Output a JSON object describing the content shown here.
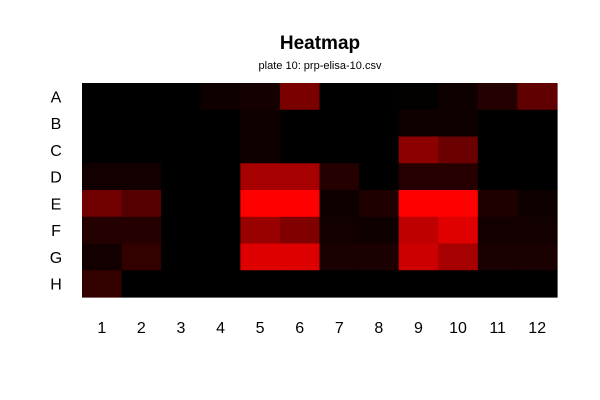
{
  "chart_data": {
    "type": "heatmap",
    "title": "Heatmap",
    "subtitle": "plate 10: prp-elisa-10.csv",
    "rows": [
      "A",
      "B",
      "C",
      "D",
      "E",
      "F",
      "G",
      "H"
    ],
    "columns": [
      "1",
      "2",
      "3",
      "4",
      "5",
      "6",
      "7",
      "8",
      "9",
      "10",
      "11",
      "12"
    ],
    "values": [
      [
        0.0,
        0.0,
        0.0,
        0.06,
        0.08,
        0.48,
        0.0,
        0.0,
        0.01,
        0.06,
        0.14,
        0.38
      ],
      [
        0.0,
        0.0,
        0.0,
        0.0,
        0.06,
        0.0,
        0.0,
        0.0,
        0.06,
        0.06,
        0.0,
        0.0
      ],
      [
        0.0,
        0.0,
        0.0,
        0.0,
        0.06,
        0.0,
        0.0,
        0.0,
        0.55,
        0.42,
        0.0,
        0.0
      ],
      [
        0.07,
        0.07,
        0.0,
        0.0,
        0.65,
        0.65,
        0.14,
        0.0,
        0.15,
        0.15,
        0.0,
        0.0
      ],
      [
        0.45,
        0.33,
        0.0,
        0.0,
        1.0,
        1.0,
        0.06,
        0.12,
        1.0,
        1.0,
        0.12,
        0.06
      ],
      [
        0.14,
        0.14,
        0.0,
        0.0,
        0.6,
        0.5,
        0.07,
        0.06,
        0.75,
        0.88,
        0.07,
        0.07
      ],
      [
        0.07,
        0.2,
        0.0,
        0.0,
        0.87,
        0.87,
        0.1,
        0.1,
        0.8,
        0.65,
        0.1,
        0.1
      ],
      [
        0.2,
        0.0,
        0.0,
        0.0,
        0.0,
        0.0,
        0.0,
        0.0,
        0.0,
        0.0,
        0.0,
        0.0
      ]
    ],
    "color_scale": {
      "low": "#000000",
      "high": "#ff0000"
    },
    "legend": "none",
    "grid": false
  }
}
